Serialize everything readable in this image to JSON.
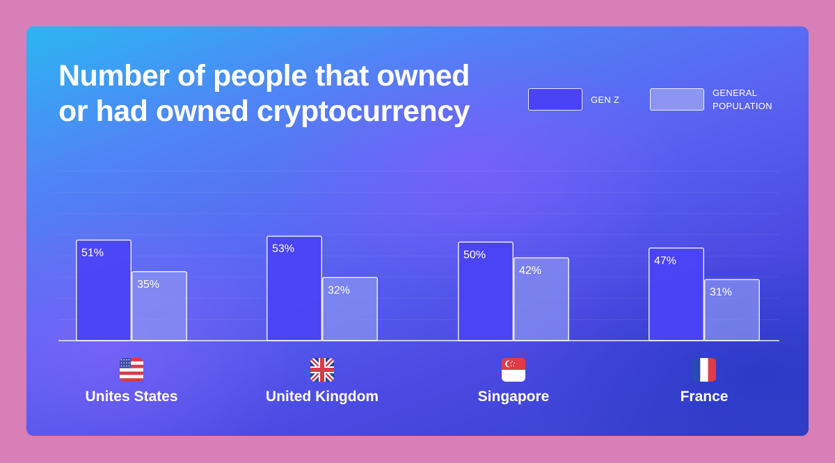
{
  "chart_data": {
    "type": "bar",
    "title": "Number of people that owned or had owned cryptocurrency",
    "categories": [
      "Unites States",
      "United Kingdom",
      "Singapore",
      "France"
    ],
    "category_icons": [
      "us-flag-icon",
      "uk-flag-icon",
      "singapore-flag-icon",
      "france-flag-icon"
    ],
    "series": [
      {
        "name": "GEN Z",
        "values": [
          51,
          53,
          50,
          47
        ],
        "color": "#4a43f5"
      },
      {
        "name": "GENERAL POPULATION",
        "values": [
          35,
          32,
          42,
          31
        ],
        "color": "#8c95f2"
      }
    ],
    "value_suffix": "%",
    "ylim": [
      0,
      100
    ],
    "grid": true,
    "legend_position": "top-right",
    "xlabel": "",
    "ylabel": ""
  },
  "legend": {
    "gen_z": "GEN Z",
    "general_population_line1": "GENERAL",
    "general_population_line2": "POPULATION"
  }
}
